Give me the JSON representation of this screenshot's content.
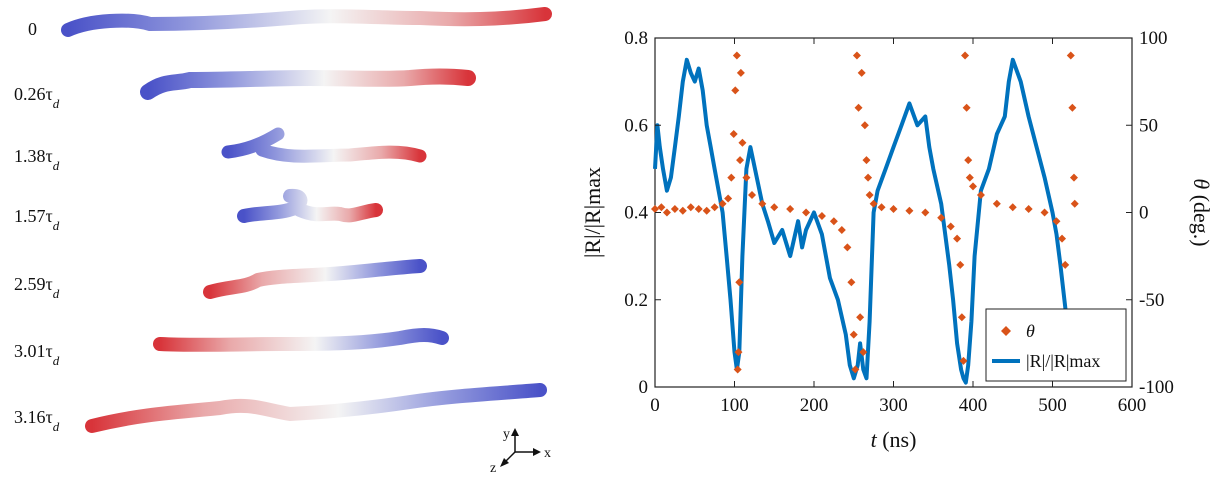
{
  "snapshots": [
    {
      "label": "0"
    },
    {
      "label": "0.26τ",
      "sub": "d"
    },
    {
      "label": "1.38τ",
      "sub": "d"
    },
    {
      "label": "1.57τ",
      "sub": "d"
    },
    {
      "label": "2.59τ",
      "sub": "d"
    },
    {
      "label": "3.01τ",
      "sub": "d"
    },
    {
      "label": "3.16τ",
      "sub": "d"
    }
  ],
  "axes_triad": {
    "y": "y",
    "x": "x",
    "z": "z"
  },
  "colors": {
    "blue_end": "#4a52c8",
    "red_end": "#d8343a",
    "mid": "#f0f0f0",
    "theta": "#d95319",
    "R": "#0072bd"
  },
  "chart_data": {
    "type": "line+scatter",
    "xlabel_italic": "t",
    "xlabel_unit": " (ns)",
    "xlim": [
      0,
      600
    ],
    "xticks": [
      0,
      100,
      200,
      300,
      400,
      500,
      600
    ],
    "ylabel_left": "|R|/|R|max",
    "ylim_left": [
      0,
      0.8
    ],
    "yticks_left": [
      0,
      0.2,
      0.4,
      0.6,
      0.8
    ],
    "ylabel_right_italic": "θ",
    "ylabel_right_unit": " (deg.)",
    "ylim_right": [
      -100,
      100
    ],
    "yticks_right": [
      -100,
      -50,
      0,
      50,
      100
    ],
    "legend_position": "bottom-right",
    "series": [
      {
        "name": "θ",
        "axis": "right",
        "kind": "scatter",
        "x": [
          0,
          8,
          15,
          25,
          35,
          45,
          55,
          65,
          75,
          85,
          92,
          96,
          99,
          101,
          103,
          104,
          105,
          106,
          107,
          108,
          110,
          115,
          122,
          135,
          150,
          170,
          190,
          210,
          225,
          235,
          242,
          247,
          250,
          252,
          254,
          256,
          258,
          260,
          262,
          264,
          266,
          268,
          270,
          275,
          285,
          300,
          320,
          340,
          360,
          372,
          380,
          384,
          386,
          388,
          390,
          392,
          394,
          396,
          400,
          410,
          430,
          450,
          470,
          490,
          505,
          512,
          516,
          519,
          521,
          523,
          525,
          527,
          528
        ],
        "y": [
          2,
          3,
          0,
          2,
          1,
          3,
          2,
          1,
          3,
          5,
          8,
          20,
          45,
          70,
          90,
          -90,
          -80,
          -40,
          30,
          80,
          40,
          20,
          10,
          5,
          3,
          2,
          0,
          -2,
          -5,
          -10,
          -20,
          -40,
          -70,
          -90,
          90,
          60,
          -60,
          80,
          -80,
          50,
          30,
          20,
          10,
          5,
          3,
          2,
          1,
          0,
          -3,
          -8,
          -15,
          -30,
          -60,
          -85,
          90,
          60,
          30,
          20,
          15,
          10,
          5,
          3,
          2,
          0,
          -5,
          -15,
          -30,
          -60,
          -80,
          90,
          60,
          20,
          5
        ]
      },
      {
        "name": "|R|/|R|max",
        "axis": "left",
        "kind": "line",
        "x": [
          0,
          3,
          6,
          10,
          15,
          20,
          25,
          30,
          35,
          40,
          45,
          50,
          55,
          60,
          65,
          70,
          75,
          80,
          85,
          90,
          95,
          100,
          103,
          106,
          110,
          115,
          120,
          128,
          135,
          142,
          150,
          160,
          170,
          180,
          185,
          190,
          200,
          210,
          215,
          220,
          230,
          240,
          245,
          250,
          255,
          258,
          262,
          266,
          270,
          275,
          280,
          290,
          300,
          310,
          320,
          330,
          340,
          345,
          350,
          360,
          365,
          370,
          375,
          380,
          385,
          388,
          391,
          394,
          398,
          402,
          410,
          420,
          430,
          440,
          445,
          450,
          460,
          470,
          480,
          490,
          500,
          505,
          510,
          515,
          520,
          525,
          528
        ],
        "y": [
          0.5,
          0.6,
          0.55,
          0.5,
          0.45,
          0.48,
          0.55,
          0.62,
          0.7,
          0.75,
          0.72,
          0.7,
          0.73,
          0.68,
          0.6,
          0.55,
          0.5,
          0.45,
          0.4,
          0.3,
          0.2,
          0.08,
          0.04,
          0.08,
          0.3,
          0.5,
          0.55,
          0.48,
          0.42,
          0.38,
          0.33,
          0.36,
          0.3,
          0.38,
          0.32,
          0.36,
          0.4,
          0.35,
          0.3,
          0.25,
          0.2,
          0.12,
          0.05,
          0.02,
          0.05,
          0.1,
          0.04,
          0.02,
          0.15,
          0.4,
          0.45,
          0.5,
          0.55,
          0.6,
          0.65,
          0.6,
          0.62,
          0.55,
          0.5,
          0.42,
          0.35,
          0.28,
          0.2,
          0.1,
          0.04,
          0.02,
          0.01,
          0.05,
          0.15,
          0.3,
          0.45,
          0.5,
          0.58,
          0.62,
          0.7,
          0.75,
          0.7,
          0.62,
          0.55,
          0.48,
          0.4,
          0.35,
          0.28,
          0.2,
          0.12,
          0.06,
          0.04
        ]
      }
    ]
  }
}
